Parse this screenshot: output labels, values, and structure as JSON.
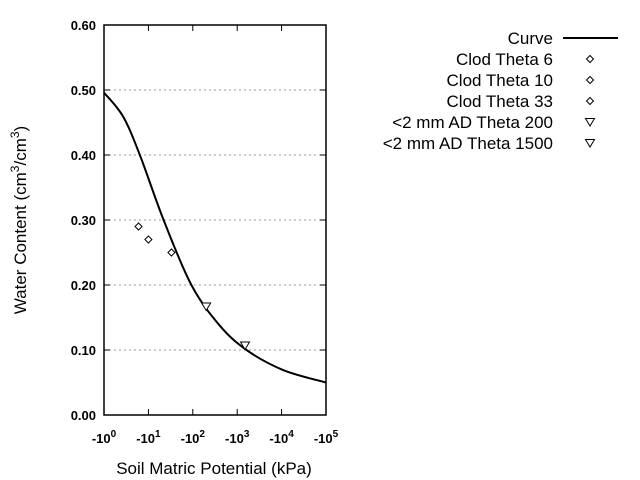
{
  "chart_data": {
    "type": "scatter",
    "xlabel": "Soil Matric Potential (kPa)",
    "ylabel_parts": [
      "Water Content (cm",
      "3",
      "/cm",
      "3",
      ")"
    ],
    "x_scale": "log",
    "x_ticks": [
      {
        "base": "-10",
        "exp": "0",
        "value": 1
      },
      {
        "base": "-10",
        "exp": "1",
        "value": 10
      },
      {
        "base": "-10",
        "exp": "2",
        "value": 100
      },
      {
        "base": "-10",
        "exp": "3",
        "value": 1000
      },
      {
        "base": "-10",
        "exp": "4",
        "value": 10000
      },
      {
        "base": "-10",
        "exp": "5",
        "value": 100000
      }
    ],
    "xlim": [
      1,
      100000
    ],
    "ylim": [
      0,
      0.6
    ],
    "y_ticks": [
      "0.00",
      "0.10",
      "0.20",
      "0.30",
      "0.40",
      "0.50",
      "0.60"
    ],
    "grid": "horizontal dotted",
    "legend_placement": "top-right",
    "curve": {
      "name": "Curve",
      "x": [
        1,
        2.7,
        6.5,
        22,
        93,
        400,
        1620,
        11000,
        100000
      ],
      "y": [
        0.496,
        0.459,
        0.399,
        0.3,
        0.2,
        0.138,
        0.1,
        0.069,
        0.05
      ]
    },
    "points": [
      {
        "name": "Clod Theta 6",
        "x": 6,
        "y": 0.29,
        "marker": "diamond"
      },
      {
        "name": "Clod Theta 10",
        "x": 10,
        "y": 0.27,
        "marker": "diamond"
      },
      {
        "name": "Clod Theta 33",
        "x": 33,
        "y": 0.25,
        "marker": "diamond"
      },
      {
        "name": "<2 mm AD Theta 200",
        "x": 200,
        "y": 0.167,
        "marker": "triangle-down"
      },
      {
        "name": "<2 mm AD Theta 1500",
        "x": 1500,
        "y": 0.107,
        "marker": "triangle-down"
      }
    ],
    "colors": {
      "line": "#000000",
      "grid": "#999999"
    }
  }
}
